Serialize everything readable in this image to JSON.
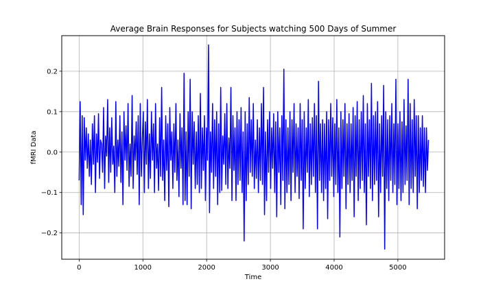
{
  "chart_data": {
    "type": "line",
    "title": "Average Brain Responses for Subjects watching 500 Days of Summer",
    "xlabel": "Time",
    "ylabel": "fMRI Data",
    "xlim": [
      -273,
      5733
    ],
    "ylim": [
      -0.265,
      0.288
    ],
    "x_ticks": [
      0,
      1000,
      2000,
      3000,
      4000,
      5000
    ],
    "x_tick_labels": [
      "0",
      "1000",
      "2000",
      "3000",
      "4000",
      "5000"
    ],
    "y_ticks": [
      -0.2,
      -0.1,
      0.0,
      0.1,
      0.2
    ],
    "y_tick_labels": [
      "−0.2",
      "−0.1",
      "0.0",
      "0.1",
      "0.2"
    ],
    "grid": true,
    "legend": "none",
    "series": [
      {
        "color": "#0000ff",
        "x_start": 0,
        "x_step": 5,
        "values": [
          -0.07,
          0.125,
          -0.13,
          0.09,
          -0.155,
          0.085,
          -0.02,
          0.06,
          -0.04,
          0.045,
          -0.06,
          0.03,
          -0.08,
          0.07,
          -0.03,
          0.09,
          -0.1,
          0.045,
          -0.025,
          0.095,
          -0.065,
          0.03,
          0.02,
          -0.05,
          0.11,
          -0.09,
          0.04,
          -0.01,
          0.13,
          -0.075,
          0.06,
          -0.05,
          0.085,
          -0.03,
          0.015,
          -0.1,
          0.125,
          -0.06,
          0.03,
          -0.035,
          0.09,
          -0.075,
          0.05,
          -0.13,
          0.1,
          -0.02,
          0.065,
          -0.045,
          0.12,
          -0.085,
          0.02,
          -0.06,
          0.14,
          -0.09,
          0.04,
          -0.02,
          0.075,
          -0.055,
          0.09,
          -0.13,
          0.12,
          -0.06,
          0.03,
          0.1,
          -0.1,
          0.075,
          -0.03,
          0.13,
          -0.09,
          0.045,
          -0.065,
          0.1,
          -0.02,
          0.07,
          -0.1,
          0.12,
          -0.04,
          0.02,
          -0.095,
          0.085,
          -0.06,
          0.16,
          -0.07,
          0.03,
          -0.12,
          0.09,
          -0.045,
          0.07,
          -0.135,
          0.11,
          -0.02,
          0.05,
          -0.09,
          0.07,
          -0.05,
          0.12,
          -0.07,
          0.03,
          -0.11,
          0.095,
          -0.04,
          0.06,
          -0.13,
          0.195,
          -0.12,
          0.05,
          -0.13,
          0.1,
          -0.06,
          0.18,
          -0.14,
          0.1,
          -0.03,
          0.075,
          -0.09,
          0.05,
          -0.08,
          0.09,
          -0.1,
          0.145,
          -0.09,
          0.06,
          -0.045,
          0.09,
          -0.12,
          0.06,
          -0.02,
          0.265,
          -0.15,
          0.05,
          -0.05,
          0.12,
          -0.09,
          0.08,
          -0.06,
          0.1,
          -0.13,
          0.07,
          -0.1,
          0.16,
          -0.095,
          0.04,
          -0.03,
          0.095,
          -0.08,
          0.12,
          -0.09,
          0.035,
          -0.04,
          0.16,
          -0.12,
          0.09,
          -0.045,
          0.06,
          -0.12,
          0.1,
          -0.08,
          0.08,
          -0.07,
          0.11,
          -0.1,
          0.05,
          -0.22,
          0.1,
          -0.12,
          0.07,
          -0.08,
          0.135,
          -0.05,
          0.08,
          -0.06,
          0.12,
          -0.09,
          0.03,
          -0.065,
          0.08,
          -0.1,
          0.06,
          -0.07,
          0.12,
          -0.08,
          0.16,
          -0.155,
          0.05,
          -0.12,
          0.08,
          -0.05,
          0.1,
          -0.09,
          0.06,
          -0.04,
          0.095,
          -0.1,
          0.075,
          -0.16,
          0.1,
          -0.05,
          0.06,
          -0.13,
          0.09,
          -0.07,
          0.205,
          -0.14,
          0.08,
          -0.1,
          0.06,
          -0.08,
          0.1,
          -0.12,
          0.08,
          -0.05,
          0.12,
          -0.1,
          0.07,
          -0.06,
          0.06,
          -0.115,
          0.12,
          -0.07,
          0.08,
          -0.19,
          0.1,
          -0.09,
          0.06,
          -0.05,
          0.13,
          -0.11,
          0.07,
          -0.08,
          0.085,
          -0.06,
          0.12,
          -0.1,
          0.09,
          -0.19,
          0.175,
          -0.07,
          0.07,
          -0.1,
          0.08,
          -0.12,
          0.07,
          -0.09,
          0.1,
          -0.165,
          0.08,
          -0.07,
          0.12,
          -0.06,
          0.085,
          -0.11,
          0.07,
          -0.08,
          0.13,
          -0.1,
          0.06,
          -0.21,
          0.1,
          -0.09,
          0.08,
          -0.06,
          0.12,
          -0.14,
          0.07,
          -0.08,
          0.095,
          -0.1,
          0.07,
          -0.07,
          0.11,
          -0.16,
          0.09,
          -0.06,
          0.125,
          -0.12,
          0.08,
          -0.09,
          0.1,
          -0.07,
          0.14,
          -0.1,
          0.07,
          -0.18,
          0.12,
          -0.06,
          0.08,
          -0.09,
          0.17,
          -0.12,
          0.09,
          -0.08,
          0.1,
          -0.07,
          0.125,
          -0.16,
          0.07,
          -0.1,
          0.09,
          -0.06,
          0.165,
          -0.24,
          0.1,
          -0.09,
          0.08,
          -0.12,
          0.09,
          -0.07,
          0.12,
          -0.1,
          0.07,
          -0.08,
          0.18,
          -0.13,
          0.07,
          -0.09,
          0.1,
          -0.12,
          0.075,
          -0.1,
          0.13,
          -0.08,
          0.065,
          -0.07,
          0.18,
          -0.13,
          0.12,
          -0.09,
          0.08,
          -0.1,
          0.13,
          -0.06,
          0.09,
          -0.14,
          0.09,
          -0.1,
          0.06,
          -0.07,
          0.09,
          -0.085,
          0.06,
          -0.1,
          0.06,
          -0.045,
          0.03
        ]
      }
    ]
  }
}
